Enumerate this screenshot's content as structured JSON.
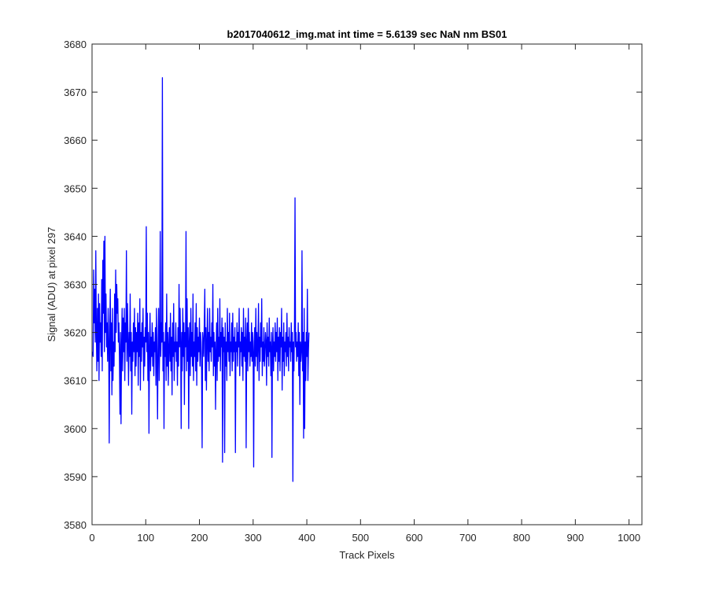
{
  "chart_data": {
    "type": "line",
    "title": "b2017040612_img.mat int time = 5.6139 sec  NaN nm BS01",
    "xlabel": "Track Pixels",
    "ylabel": "Signal (ADU) at pixel 297",
    "xlim": [
      0,
      1024
    ],
    "ylim": [
      3580,
      3680
    ],
    "xticks": [
      0,
      100,
      200,
      300,
      400,
      500,
      600,
      700,
      800,
      900,
      1000
    ],
    "yticks": [
      3580,
      3590,
      3600,
      3610,
      3620,
      3630,
      3640,
      3650,
      3660,
      3670,
      3680
    ],
    "grid": false,
    "line_color": "#0000ff",
    "series": [
      {
        "name": "",
        "x_start": 1,
        "x_step": 1,
        "values": [
          3616,
          3615,
          3633,
          3622,
          3629,
          3618,
          3637,
          3620,
          3612,
          3625,
          3614,
          3628,
          3610,
          3626,
          3618,
          3622,
          3615,
          3631,
          3612,
          3635,
          3624,
          3639,
          3616,
          3640,
          3620,
          3628,
          3617,
          3622,
          3614,
          3625,
          3618,
          3597,
          3621,
          3629,
          3612,
          3622,
          3607,
          3625,
          3610,
          3618,
          3613,
          3628,
          3616,
          3633,
          3620,
          3630,
          3624,
          3627,
          3618,
          3622,
          3615,
          3603,
          3620,
          3601,
          3617,
          3625,
          3612,
          3623,
          3616,
          3625,
          3610,
          3622,
          3618,
          3637,
          3614,
          3626,
          3618,
          3609,
          3620,
          3615,
          3628,
          3612,
          3620,
          3603,
          3618,
          3614,
          3622,
          3616,
          3625,
          3611,
          3621,
          3613,
          3620,
          3616,
          3624,
          3609,
          3622,
          3615,
          3627,
          3608,
          3620,
          3614,
          3622,
          3617,
          3625,
          3610,
          3619,
          3613,
          3621,
          3618,
          3642,
          3616,
          3624,
          3610,
          3620,
          3599,
          3617,
          3624,
          3612,
          3619,
          3615,
          3622,
          3613,
          3620,
          3611,
          3618,
          3616,
          3621,
          3609,
          3625,
          3614,
          3602,
          3618,
          3625,
          3610,
          3617,
          3641,
          3615,
          3622,
          3618,
          3673,
          3612,
          3620,
          3600,
          3618,
          3615,
          3622,
          3610,
          3628,
          3613,
          3620,
          3609,
          3617,
          3621,
          3614,
          3624,
          3612,
          3619,
          3607,
          3622,
          3615,
          3626,
          3610,
          3618,
          3616,
          3622,
          3614,
          3618,
          3609,
          3621,
          3613,
          3630,
          3617,
          3625,
          3618,
          3600,
          3620,
          3612,
          3625,
          3615,
          3622,
          3605,
          3620,
          3617,
          3641,
          3612,
          3627,
          3614,
          3621,
          3600,
          3618,
          3622,
          3611,
          3625,
          3615,
          3620,
          3613,
          3628,
          3610,
          3618,
          3615,
          3622,
          3612,
          3626,
          3609,
          3621,
          3614,
          3619,
          3616,
          3623,
          3613,
          3620,
          3618,
          3612,
          3596,
          3620,
          3618,
          3615,
          3622,
          3629,
          3610,
          3621,
          3608,
          3618,
          3625,
          3614,
          3620,
          3612,
          3625,
          3616,
          3619,
          3614,
          3622,
          3617,
          3630,
          3611,
          3620,
          3613,
          3618,
          3604,
          3616,
          3622,
          3610,
          3625,
          3614,
          3619,
          3615,
          3627,
          3612,
          3620,
          3617,
          3623,
          3593,
          3621,
          3616,
          3619,
          3595,
          3622,
          3613,
          3618,
          3610,
          3625,
          3616,
          3620,
          3614,
          3624,
          3611,
          3618,
          3616,
          3622,
          3612,
          3624,
          3614,
          3619,
          3616,
          3621,
          3595,
          3618,
          3616,
          3622,
          3613,
          3620,
          3617,
          3625,
          3611,
          3618,
          3616,
          3621,
          3613,
          3620,
          3610,
          3625,
          3615,
          3619,
          3614,
          3623,
          3596,
          3618,
          3622,
          3612,
          3625,
          3616,
          3620,
          3613,
          3618,
          3615,
          3622,
          3614,
          3620,
          3616,
          3592,
          3618,
          3621,
          3613,
          3625,
          3615,
          3620,
          3612,
          3618,
          3626,
          3610,
          3619,
          3614,
          3622,
          3617,
          3627,
          3611,
          3618,
          3614,
          3621,
          3613,
          3616,
          3620,
          3618,
          3609,
          3622,
          3615,
          3619,
          3613,
          3623,
          3616,
          3618,
          3611,
          3620,
          3594,
          3617,
          3621,
          3612,
          3618,
          3615,
          3622,
          3614,
          3620,
          3616,
          3623,
          3610,
          3619,
          3614,
          3621,
          3612,
          3620,
          3617,
          3625,
          3608,
          3619,
          3614,
          3622,
          3611,
          3618,
          3616,
          3620,
          3613,
          3624,
          3615,
          3619,
          3612,
          3621,
          3617,
          3618,
          3614,
          3622,
          3616,
          3620,
          3589,
          3618,
          3612,
          3621,
          3648,
          3617,
          3620,
          3614,
          3618,
          3615,
          3622,
          3611,
          3620,
          3605,
          3618,
          3614,
          3616,
          3637,
          3612,
          3620,
          3598,
          3625,
          3600,
          3618,
          3610,
          3620,
          3615,
          3629,
          3610,
          3616,
          3620
        ]
      }
    ]
  }
}
